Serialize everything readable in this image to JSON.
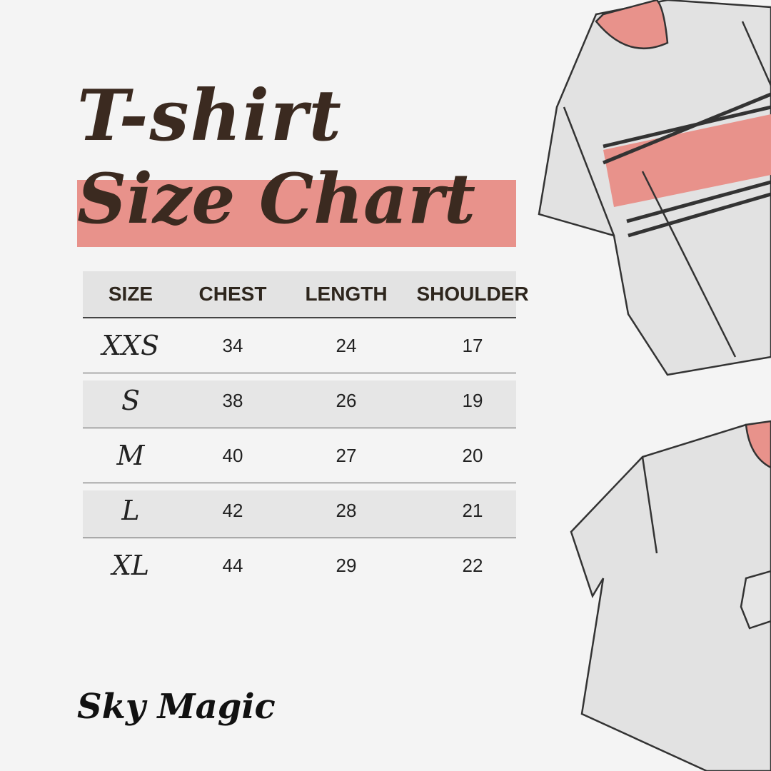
{
  "title": {
    "line1": "T-shirt",
    "line2": "Size Chart"
  },
  "colors": {
    "accent_pink": "#e8928b",
    "title_brown": "#3b2a20",
    "background": "#f4f4f4"
  },
  "table": {
    "headers": [
      "SIZE",
      "CHEST",
      "LENGTH",
      "SHOULDER"
    ],
    "rows": [
      {
        "size": "XXS",
        "chest": "34",
        "length": "24",
        "shoulder": "17"
      },
      {
        "size": "S",
        "chest": "38",
        "length": "26",
        "shoulder": "19"
      },
      {
        "size": "M",
        "chest": "40",
        "length": "27",
        "shoulder": "20"
      },
      {
        "size": "L",
        "chest": "42",
        "length": "28",
        "shoulder": "21"
      },
      {
        "size": "XL",
        "chest": "44",
        "length": "29",
        "shoulder": "22"
      }
    ]
  },
  "brand": "Sky Magic",
  "illustrations": [
    "striped-tshirt-illustration",
    "pocket-tshirt-illustration"
  ]
}
